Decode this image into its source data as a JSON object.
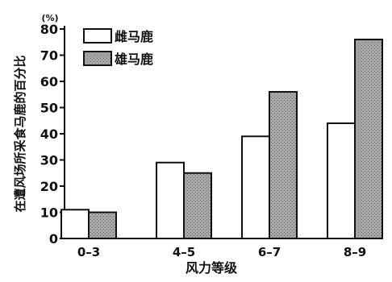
{
  "chart_data": {
    "type": "bar",
    "ylabel": "在遭风场所采食马鹿的百分比",
    "yunit": "(%)",
    "xlabel": "风力等级",
    "categories": [
      "0–3",
      "4–5",
      "6–7",
      "8–9"
    ],
    "ylim": [
      0,
      80
    ],
    "yticks": [
      0,
      10,
      20,
      30,
      40,
      50,
      60,
      70,
      80
    ],
    "legend_position": "top-left",
    "series": [
      {
        "name": "雌马鹿",
        "values": [
          11,
          29,
          39,
          44
        ],
        "color": "#ffffff"
      },
      {
        "name": "雄马鹿",
        "values": [
          10,
          25,
          56,
          76
        ],
        "color": "#9a9a9a"
      }
    ]
  }
}
